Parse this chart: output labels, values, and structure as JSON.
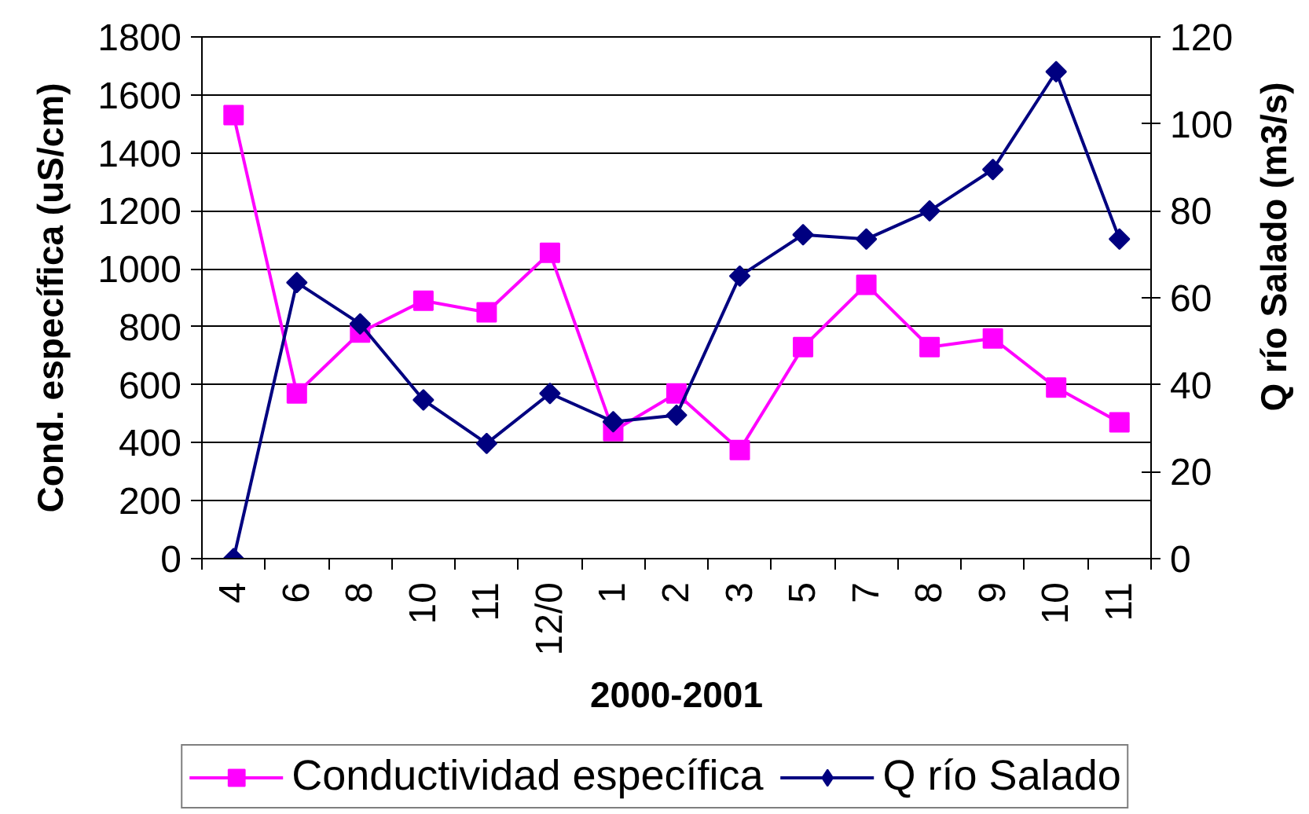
{
  "chart_data": {
    "type": "line",
    "xlabel": "2000-2001",
    "ylabel": "Cond. específica (uS/cm)",
    "y2label": "Q río Salado (m3/s)",
    "categories": [
      "4",
      "6",
      "8",
      "10",
      "11",
      "12/0",
      "1",
      "2",
      "3",
      "5",
      "7",
      "8",
      "9",
      "10",
      "11"
    ],
    "series": [
      {
        "name": "Conductividad específica",
        "color": "#ff00ff",
        "marker": "square",
        "values": [
          1530,
          570,
          780,
          890,
          850,
          1055,
          440,
          570,
          375,
          730,
          945,
          730,
          760,
          590,
          470
        ]
      },
      {
        "name": "Q río Salado",
        "color": "#000080",
        "marker": "diamond",
        "axis": "y2",
        "values": [
          0,
          63.5,
          54,
          36.5,
          26.5,
          38,
          31.5,
          33,
          65,
          74.5,
          73.5,
          80,
          89.5,
          112,
          73.5
        ]
      }
    ],
    "ylim": [
      0,
      1800
    ],
    "yticks": [
      0,
      200,
      400,
      600,
      800,
      1000,
      1200,
      1400,
      1600,
      1800
    ],
    "y2lim": [
      0,
      120
    ],
    "y2ticks": [
      0,
      20,
      40,
      60,
      80,
      100,
      120
    ],
    "grid": "y",
    "legend": "bottom",
    "line_style": "solid"
  }
}
